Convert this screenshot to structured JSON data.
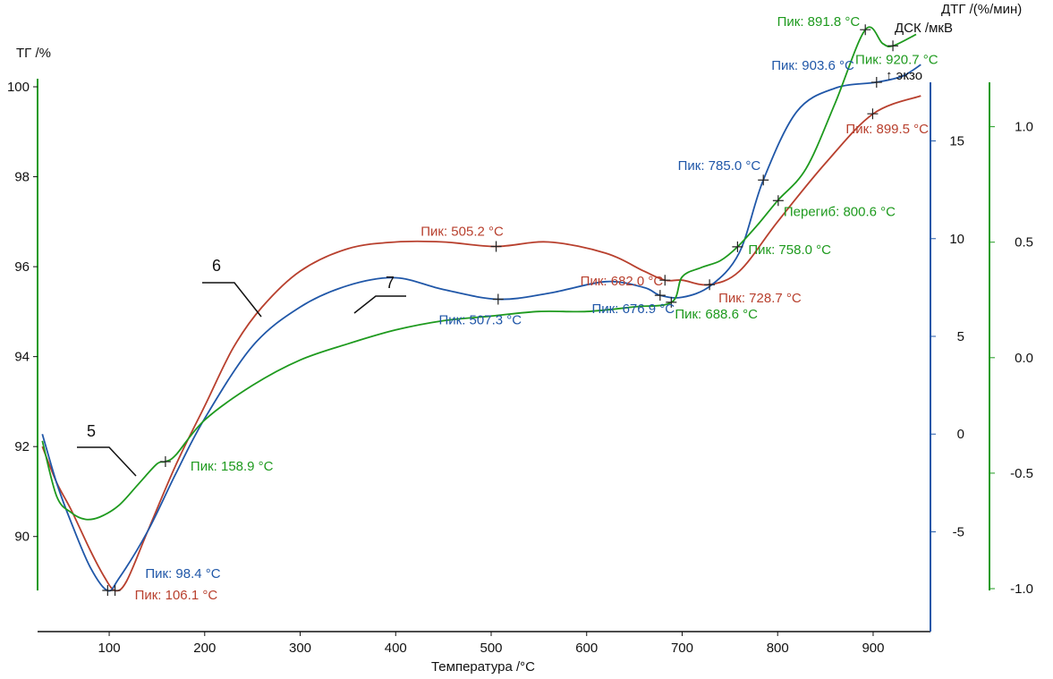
{
  "colors": {
    "tg": "#b8402e",
    "dsc": "#2057a8",
    "dtg": "#1e9a1e",
    "axis": "#111111"
  },
  "labels": {
    "tg_axis": "ТГ /%",
    "dtg_axis": "ДТГ /(%/мин)",
    "dsc_axis": "ДСК /мкВ",
    "exo": "↑ экзо",
    "x_axis": "Температура /°C",
    "curve5": "5",
    "curve6": "6",
    "curve7": "7"
  },
  "chart_data": {
    "type": "line",
    "title": "",
    "xlabel": "Температура /°C",
    "xlim": [
      25,
      960
    ],
    "x_ticks": [
      100,
      200,
      300,
      400,
      500,
      600,
      700,
      800,
      900
    ],
    "axes": {
      "tg": {
        "label": "ТГ /%",
        "range": [
          89,
          100.1
        ],
        "ticks": [
          90,
          92,
          94,
          96,
          98,
          100
        ]
      },
      "dsc": {
        "label": "ДСК /мкВ",
        "range": [
          -8,
          18
        ],
        "ticks": [
          -5,
          0,
          5,
          10,
          15
        ]
      },
      "dtg": {
        "label": "ДТГ /(%/мин)",
        "range": [
          -1.0,
          1.2
        ],
        "ticks": [
          -1.0,
          -0.5,
          0.0,
          0.5,
          1.0
        ]
      }
    },
    "series": [
      {
        "key": "tg",
        "curve_label": "6",
        "axis": "tg",
        "color": "#b8402e",
        "x": [
          30,
          45,
          60,
          80,
          95,
          106,
          118,
          140,
          170,
          200,
          230,
          260,
          300,
          350,
          400,
          450,
          505,
          560,
          620,
          660,
          682,
          700,
          728,
          760,
          800,
          850,
          900,
          950
        ],
        "y": [
          92.0,
          91.2,
          90.6,
          89.7,
          89.1,
          88.8,
          89.0,
          90.1,
          91.6,
          92.9,
          94.2,
          95.1,
          95.9,
          96.4,
          96.55,
          96.55,
          96.45,
          96.55,
          96.3,
          95.9,
          95.7,
          95.7,
          95.6,
          95.9,
          97.0,
          98.3,
          99.4,
          99.8
        ]
      },
      {
        "key": "dsc",
        "curve_label": "7",
        "axis": "dsc",
        "color": "#2057a8",
        "x": [
          30,
          45,
          60,
          80,
          98,
          110,
          140,
          170,
          200,
          250,
          300,
          350,
          400,
          450,
          507,
          560,
          620,
          660,
          677,
          700,
          730,
          760,
          785,
          820,
          860,
          903,
          930,
          950
        ],
        "y": [
          0,
          -2.5,
          -4.5,
          -6.8,
          -8.0,
          -7.4,
          -5.0,
          -2.0,
          0.8,
          4.5,
          6.5,
          7.6,
          8.0,
          7.4,
          6.9,
          7.2,
          7.8,
          7.5,
          7.1,
          7.0,
          7.6,
          9.3,
          13.0,
          16.5,
          17.7,
          18.0,
          18.3,
          18.9
        ]
      },
      {
        "key": "dtg",
        "curve_label": "5",
        "axis": "dtg",
        "color": "#1e9a1e",
        "x": [
          30,
          45,
          60,
          75,
          90,
          110,
          130,
          150,
          159,
          170,
          200,
          250,
          300,
          350,
          400,
          450,
          500,
          550,
          600,
          650,
          689,
          700,
          720,
          740,
          758,
          780,
          800,
          830,
          860,
          891.8,
          910,
          920.7,
          945
        ],
        "y": [
          -0.36,
          -0.6,
          -0.67,
          -0.7,
          -0.69,
          -0.64,
          -0.55,
          -0.46,
          -0.45,
          -0.42,
          -0.27,
          -0.12,
          -0.01,
          0.06,
          0.12,
          0.16,
          0.18,
          0.2,
          0.2,
          0.22,
          0.24,
          0.35,
          0.39,
          0.42,
          0.48,
          0.58,
          0.68,
          0.82,
          1.1,
          1.42,
          1.36,
          1.35,
          1.4
        ]
      }
    ],
    "annotations": [
      {
        "series": "dtg",
        "text": "Пик: 891.8 °C",
        "x": 891.8,
        "y": 1.42,
        "dx": -6,
        "dy": -4,
        "anchor": "end"
      },
      {
        "series": "dtg",
        "text": "Пик: 920.7 °C",
        "x": 920.7,
        "y": 1.35,
        "dx": -42,
        "dy": 20,
        "anchor": "start"
      },
      {
        "series": "dsc",
        "text": "Пик: 903.6 °C",
        "x": 903.6,
        "y": 18.0,
        "dx": -25,
        "dy": -14,
        "anchor": "end"
      },
      {
        "series": "tg",
        "text": "Пик: 899.5 °C",
        "x": 899.5,
        "y": 99.4,
        "dx": -30,
        "dy": 22,
        "anchor": "start"
      },
      {
        "series": "dsc",
        "text": "Пик: 785.0 °C",
        "x": 785.0,
        "y": 13.0,
        "dx": -3,
        "dy": -11,
        "anchor": "end"
      },
      {
        "series": "dtg",
        "text": "Перегиб: 800.6 °C",
        "x": 800.6,
        "y": 0.68,
        "dx": 6,
        "dy": 17,
        "anchor": "start"
      },
      {
        "series": "dtg",
        "text": "Пик: 758.0 °C",
        "x": 758.0,
        "y": 0.48,
        "dx": 12,
        "dy": 8,
        "anchor": "start"
      },
      {
        "series": "tg",
        "text": "Пик: 728.7 °C",
        "x": 728.7,
        "y": 95.6,
        "dx": 10,
        "dy": 20,
        "anchor": "start"
      },
      {
        "series": "tg",
        "text": "Пик: 682.0 °C",
        "x": 682.0,
        "y": 95.7,
        "dx": -2,
        "dy": 6,
        "anchor": "end"
      },
      {
        "series": "tg",
        "text": "Пик: 505.2 °C",
        "x": 505.2,
        "y": 96.45,
        "dx": -38,
        "dy": -12,
        "anchor": "middle"
      },
      {
        "series": "dsc",
        "text": "Пик: 676.9 °C",
        "x": 676.9,
        "y": 7.1,
        "dx": -30,
        "dy": 20,
        "anchor": "middle"
      },
      {
        "series": "dtg",
        "text": "Пик: 688.6 °C",
        "x": 688.6,
        "y": 0.24,
        "dx": 4,
        "dy": 18,
        "anchor": "start"
      },
      {
        "series": "dsc",
        "text": "Пик: 507.3 °C",
        "x": 507.3,
        "y": 6.9,
        "dx": -20,
        "dy": 28,
        "anchor": "middle"
      },
      {
        "series": "dtg",
        "text": "Пик: 158.9 °C",
        "x": 158.9,
        "y": -0.45,
        "dx": 28,
        "dy": 10,
        "anchor": "start"
      },
      {
        "series": "dsc",
        "text": "Пик: 98.4 °C",
        "x": 98.4,
        "y": -8.0,
        "dx": 42,
        "dy": -14,
        "anchor": "start"
      },
      {
        "series": "tg",
        "text": "Пик: 106.1 °C",
        "x": 106.1,
        "y": 88.8,
        "dx": 22,
        "dy": 10,
        "anchor": "start"
      }
    ]
  }
}
